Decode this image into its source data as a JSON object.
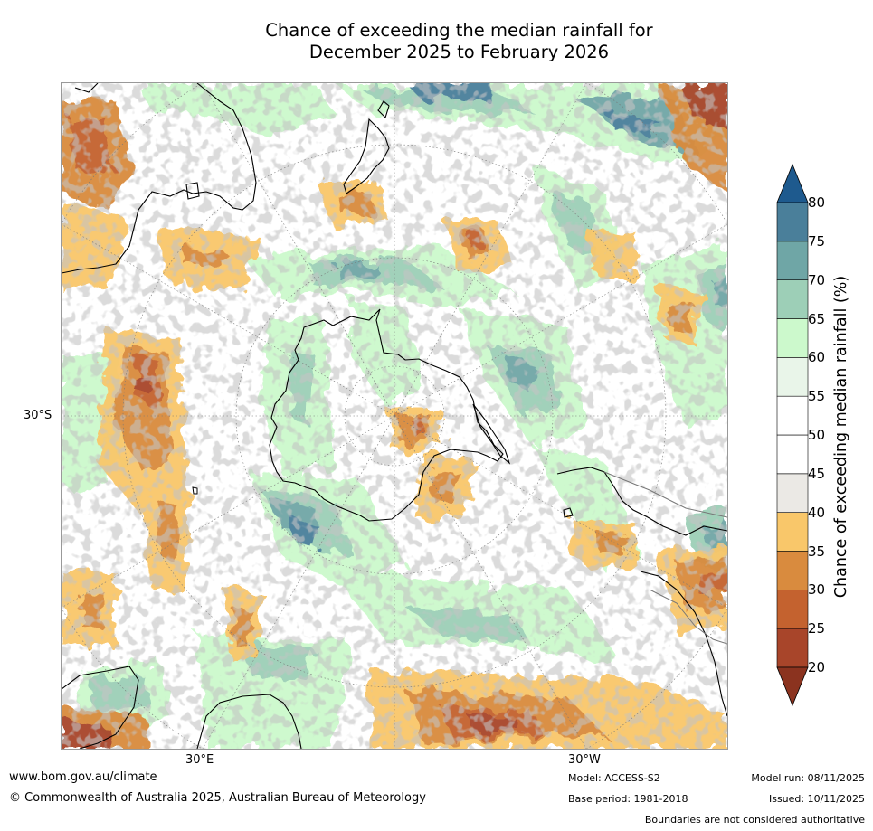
{
  "title_line1": "Chance of exceeding the median rainfall for",
  "title_line2": "December 2025 to February 2026",
  "latitude_labels": [
    "30°S"
  ],
  "longitude_labels": [
    "30°E",
    "30°W"
  ],
  "colorbar": {
    "title": "Chance of exceeding median rainfall (%)",
    "ticks": [
      "20",
      "25",
      "30",
      "35",
      "40",
      "45",
      "50",
      "55",
      "60",
      "65",
      "70",
      "75",
      "80"
    ],
    "colors": [
      "#a8452a",
      "#c4622f",
      "#d98b3e",
      "#f9c76a",
      "#ebe9e5",
      "#ffffff",
      "#ffffff",
      "#e9f5e9",
      "#ccf9cc",
      "#9dcfb7",
      "#6fa6a6",
      "#4a7f9a"
    ],
    "low_extend_color": "#8b331f",
    "high_extend_color": "#1e5a8e"
  },
  "footer": {
    "website": "www.bom.gov.au/climate",
    "copyright": "© Commonwealth of Australia 2025, Australian Bureau of Meteorology",
    "model": "Model: ACCESS-S2",
    "base_period": "Base period: 1981-2018",
    "model_run": "Model run: 08/11/2025",
    "issued": "Issued: 10/11/2025",
    "disclaimer": "Boundaries are not considered authoritative"
  }
}
